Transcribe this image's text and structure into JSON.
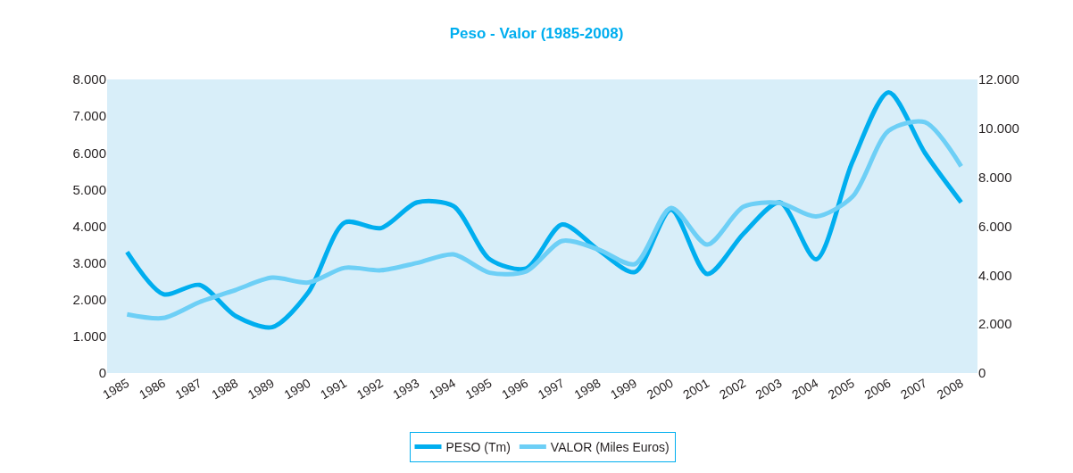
{
  "chart_data": {
    "type": "line",
    "title": "Peso - Valor (1985-2008)",
    "categories": [
      "1985",
      "1986",
      "1987",
      "1988",
      "1989",
      "1990",
      "1991",
      "1992",
      "1993",
      "1994",
      "1995",
      "1996",
      "1997",
      "1998",
      "1999",
      "2000",
      "2001",
      "2002",
      "2003",
      "2004",
      "2005",
      "2006",
      "2007",
      "2008"
    ],
    "series": [
      {
        "name": "PESO (Tm)",
        "color": "#00aeef",
        "values": [
          3300,
          2150,
          2400,
          1550,
          1250,
          2200,
          4100,
          3950,
          4650,
          4550,
          3100,
          2850,
          4050,
          3350,
          2750,
          4450,
          2700,
          3800,
          4650,
          3100,
          5750,
          7650,
          6000,
          4650
        ]
      },
      {
        "name": "VALOR (Miles Euros)",
        "color": "#6dcff6",
        "axis": "y2",
        "values": [
          2400,
          2250,
          2900,
          3400,
          3900,
          3700,
          4300,
          4200,
          4500,
          4850,
          4100,
          4150,
          5400,
          5050,
          4450,
          6750,
          5250,
          6800,
          6950,
          6400,
          7200,
          9900,
          10250,
          8450
        ]
      }
    ],
    "ylim": [
      0,
      8000
    ],
    "yticks": [
      0,
      {
        "value": 1000,
        "label": "1.000"
      },
      {
        "value": 2000,
        "label": "2.000"
      },
      {
        "value": 3000,
        "label": "3.000"
      },
      {
        "value": 4000,
        "label": "4.000"
      },
      {
        "value": 5000,
        "label": "5.000"
      },
      {
        "value": 6000,
        "label": "6.000"
      },
      {
        "value": 7000,
        "label": "7.000"
      },
      {
        "value": 8000,
        "label": "8.000"
      }
    ],
    "y2lim": [
      0,
      12000
    ],
    "y2ticks": [
      0,
      {
        "value": 2000,
        "label": "2.000"
      },
      {
        "value": 4000,
        "label": "4.000"
      },
      {
        "value": 6000,
        "label": "6.000"
      },
      {
        "value": 8000,
        "label": "8.000"
      },
      {
        "value": 10000,
        "label": "10.000"
      },
      {
        "value": 12000,
        "label": "12.000"
      }
    ],
    "grid": false,
    "legend": "bottom",
    "marker": "none",
    "line_style": "solid"
  }
}
